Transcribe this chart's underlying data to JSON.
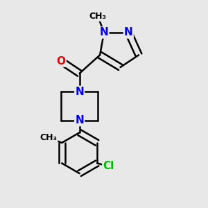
{
  "background_color": "#e8e8e8",
  "bond_color": "#000000",
  "bond_width": 1.8,
  "atom_colors": {
    "N": "#0000ee",
    "O": "#ee0000",
    "Cl": "#00bb00",
    "C": "#000000"
  },
  "font_size_atom": 11,
  "font_size_small": 9
}
